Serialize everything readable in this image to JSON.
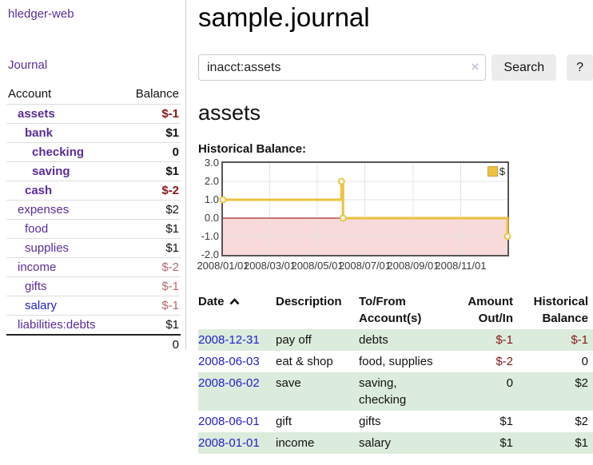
{
  "header": {
    "title": "sample.journal"
  },
  "sidebar": {
    "brand": "hledger-web",
    "journal_label": "Journal",
    "accounts_table": {
      "headers": {
        "account": "Account",
        "balance": "Balance"
      },
      "rows": [
        {
          "name": "assets",
          "depth": 1,
          "bold": true,
          "balance": "$-1",
          "balance_style": "neg-strong",
          "link_color": "purple"
        },
        {
          "name": "bank",
          "depth": 2,
          "bold": true,
          "balance": "$1",
          "balance_style": "",
          "link_color": "purple"
        },
        {
          "name": "checking",
          "depth": 3,
          "bold": true,
          "balance": "0",
          "balance_style": "",
          "link_color": "purple"
        },
        {
          "name": "saving",
          "depth": 3,
          "bold": true,
          "balance": "$1",
          "balance_style": "",
          "link_color": "purple"
        },
        {
          "name": "cash",
          "depth": 2,
          "bold": true,
          "balance": "$-2",
          "balance_style": "neg-strong",
          "link_color": "purple"
        },
        {
          "name": "expenses",
          "depth": 1,
          "bold": false,
          "balance": "$2",
          "balance_style": "",
          "link_color": "purple"
        },
        {
          "name": "food",
          "depth": 2,
          "bold": false,
          "balance": "$1",
          "balance_style": "",
          "link_color": "purple"
        },
        {
          "name": "supplies",
          "depth": 2,
          "bold": false,
          "balance": "$1",
          "balance_style": "",
          "link_color": "purple"
        },
        {
          "name": "income",
          "depth": 1,
          "bold": false,
          "balance": "$-2",
          "balance_style": "neg-muted",
          "link_color": "purple"
        },
        {
          "name": "gifts",
          "depth": 2,
          "bold": false,
          "balance": "$-1",
          "balance_style": "neg-muted",
          "link_color": "purple"
        },
        {
          "name": "salary",
          "depth": 2,
          "bold": false,
          "balance": "$-1",
          "balance_style": "neg-muted",
          "link_color": "blue"
        },
        {
          "name": "liabilities:debts",
          "depth": 1,
          "bold": false,
          "balance": "$1",
          "balance_style": "",
          "link_color": "purple"
        }
      ],
      "total": "0"
    }
  },
  "search": {
    "value": "inacct:assets",
    "clear_icon": "×",
    "button_label": "Search",
    "help_label": "?"
  },
  "account_page": {
    "title": "assets",
    "chart_label": "Historical Balance:"
  },
  "chart_data": {
    "type": "line",
    "title": "Historical Balance",
    "step": true,
    "x_range": [
      "2008-01-01",
      "2008-12-31"
    ],
    "ylim": [
      -2,
      3
    ],
    "yticks": [
      {
        "label": "3.0",
        "value": 3
      },
      {
        "label": "2.0",
        "value": 2
      },
      {
        "label": "1.0",
        "value": 1
      },
      {
        "label": "0.0",
        "value": 0
      },
      {
        "label": "-1.0",
        "value": -1
      },
      {
        "label": "-2.0",
        "value": -2
      }
    ],
    "xticks": [
      {
        "label": "2008/01/01",
        "date": "2008-01-01"
      },
      {
        "label": "2008/03/01",
        "date": "2008-03-01"
      },
      {
        "label": "2008/05/01",
        "date": "2008-05-01"
      },
      {
        "label": "2008/07/01",
        "date": "2008-07-01"
      },
      {
        "label": "2008/09/01",
        "date": "2008-09-01"
      },
      {
        "label": "2008/11/01",
        "date": "2008-11-01"
      }
    ],
    "series": [
      {
        "name": "$",
        "color": "#edc240",
        "points": [
          {
            "x": "2008-01-01",
            "y": 1
          },
          {
            "x": "2008-06-01",
            "y": 2
          },
          {
            "x": "2008-06-03",
            "y": 0
          },
          {
            "x": "2008-12-31",
            "y": -1
          }
        ]
      }
    ],
    "legend_position": "top-right",
    "grid": true,
    "negative_region_fill": "#f9dada",
    "zero_line_color": "#8b0000"
  },
  "register_table": {
    "headers": [
      {
        "label": "Date",
        "align": "left",
        "sorted": "ascending"
      },
      {
        "label": "Description",
        "align": "left"
      },
      {
        "label": "To/From Account(s)",
        "align": "left"
      },
      {
        "label": "Amount Out/In",
        "align": "right"
      },
      {
        "label": "Historical Balance",
        "align": "right"
      }
    ],
    "rows": [
      {
        "date": "2008-12-31",
        "description": "pay off",
        "accounts": "debts",
        "amount": "$-1",
        "amount_negative": true,
        "balance": "$-1",
        "balance_negative": true,
        "shaded": true
      },
      {
        "date": "2008-06-03",
        "description": "eat & shop",
        "accounts": "food, supplies",
        "amount": "$-2",
        "amount_negative": true,
        "balance": "0",
        "balance_negative": false,
        "shaded": false
      },
      {
        "date": "2008-06-02",
        "description": "save",
        "accounts": "saving, checking",
        "amount": "0",
        "amount_negative": false,
        "balance": "$2",
        "balance_negative": false,
        "shaded": true
      },
      {
        "date": "2008-06-01",
        "description": "gift",
        "accounts": "gifts",
        "amount": "$1",
        "amount_negative": false,
        "balance": "$2",
        "balance_negative": false,
        "shaded": false
      },
      {
        "date": "2008-01-01",
        "description": "income",
        "accounts": "salary",
        "amount": "$1",
        "amount_negative": false,
        "balance": "$1",
        "balance_negative": false,
        "shaded": true
      }
    ]
  },
  "colors": {
    "accent_purple": "#5b2c98",
    "link_blue": "#2222cc",
    "negative_strong": "#871515",
    "negative_muted": "#b56a6a",
    "row_shade_green": "#dcecdc",
    "series_gold": "#edc240",
    "chart_negative_fill": "#f9dada",
    "zero_line": "#8b0000",
    "button_gray": "#ececec"
  }
}
